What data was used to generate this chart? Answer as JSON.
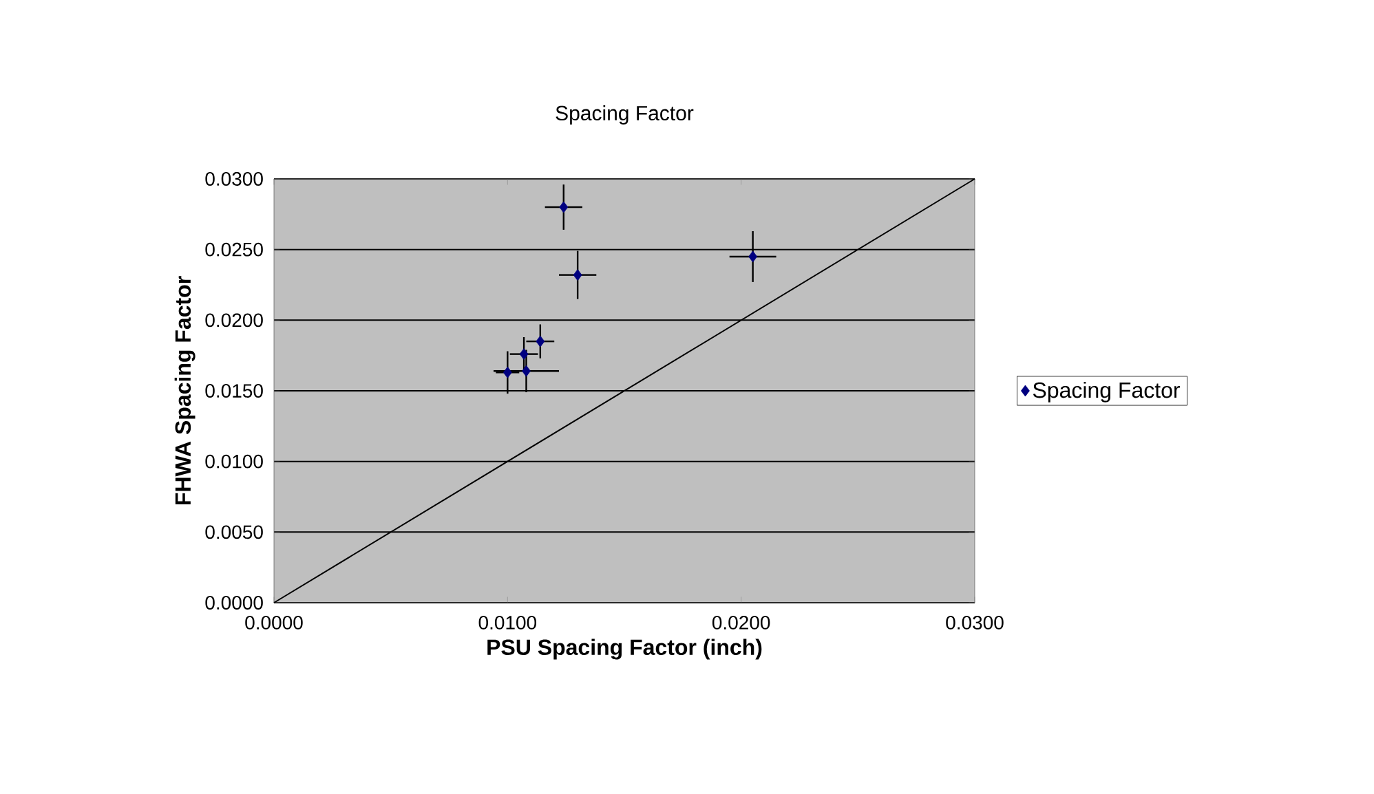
{
  "chart_data": {
    "type": "scatter",
    "title": "Spacing Factor",
    "xlabel": "PSU Spacing Factor (inch)",
    "ylabel": "FHWA Spacing Factor",
    "xlim": [
      0,
      0.03
    ],
    "ylim": [
      0,
      0.03
    ],
    "xticks": [
      {
        "value": 0,
        "label": "0.0000"
      },
      {
        "value": 0.01,
        "label": "0.0100"
      },
      {
        "value": 0.02,
        "label": "0.0200"
      },
      {
        "value": 0.03,
        "label": "0.0300"
      }
    ],
    "yticks": [
      {
        "value": 0,
        "label": "0.0000"
      },
      {
        "value": 0.005,
        "label": "0.0050"
      },
      {
        "value": 0.01,
        "label": "0.0100"
      },
      {
        "value": 0.015,
        "label": "0.0150"
      },
      {
        "value": 0.02,
        "label": "0.0200"
      },
      {
        "value": 0.025,
        "label": "0.0250"
      },
      {
        "value": 0.03,
        "label": "0.0300"
      }
    ],
    "grid": "y",
    "legend": "right",
    "marker": "diamond",
    "series": [
      {
        "name": "Spacing Factor",
        "color": "#000080",
        "x": [
          0.0124,
          0.013,
          0.0205,
          0.0114,
          0.0107,
          0.01,
          0.0108
        ],
        "values": [
          0.028,
          0.0232,
          0.0245,
          0.0185,
          0.0176,
          0.0163,
          0.0164
        ],
        "xerrors": [
          0.0008,
          0.0008,
          0.001,
          0.0006,
          0.0006,
          0.0005,
          0.0014
        ],
        "errors": [
          0.0016,
          0.0017,
          0.0018,
          0.0012,
          0.0012,
          0.0015,
          0.0015
        ]
      },
      {
        "type": "line",
        "color": "#000000",
        "marker": "none",
        "x": [
          0,
          0.03
        ],
        "values": [
          0,
          0.03
        ]
      }
    ]
  }
}
